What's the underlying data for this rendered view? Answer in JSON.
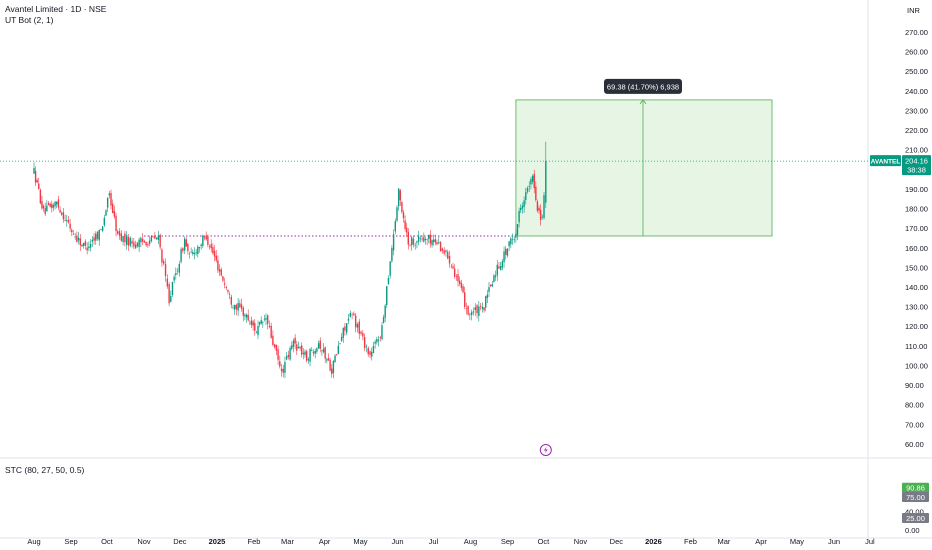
{
  "header": {
    "title": "Avantel Limited · 1D · NSE",
    "indicator": "UT Bot (2, 1)",
    "currency": "INR"
  },
  "price_badge": {
    "symbol": "AVANTEL",
    "price": "204.16",
    "countdown": "38:38"
  },
  "measure_label": "69.38 (41.70%) 6,938",
  "oscillator": {
    "name": "STC (80, 27, 50, 0.5)",
    "value_label": "90.86",
    "upper_level_label": "75.00",
    "lower_level_label": "25.00"
  },
  "colors": {
    "up": "#089981",
    "down": "#f23645",
    "range_fill": "#e6f5e4",
    "range_line": "#4caf50",
    "level_line": "#9c27b0",
    "badge_dark": "#2a2e39"
  },
  "chart_data": {
    "type": "candlestick",
    "title": "Avantel Limited · 1D · NSE",
    "price_axis_ticks": [
      "270.00",
      "260.00",
      "250.00",
      "240.00",
      "230.00",
      "220.00",
      "210.00",
      "200.00",
      "190.00",
      "180.00",
      "170.00",
      "160.00",
      "150.00",
      "140.00",
      "130.00",
      "120.00",
      "110.00",
      "100.00",
      "90.00",
      "80.00",
      "70.00",
      "60.00"
    ],
    "osc_axis_ticks": [
      "40.00",
      "0.00"
    ],
    "time_axis_ticks": [
      "Aug",
      "Sep",
      "Oct",
      "Nov",
      "Dec",
      "2025",
      "Feb",
      "Mar",
      "Apr",
      "May",
      "Jun",
      "Jul",
      "Aug",
      "Sep",
      "Oct",
      "Nov",
      "Dec",
      "2026",
      "Feb",
      "Mar",
      "Apr",
      "May",
      "Jun",
      "Jul"
    ],
    "price_range": [
      50,
      275
    ],
    "last_price": 204.16,
    "support_level": 166,
    "projection": {
      "from": 166.0,
      "to": 235.38,
      "change": 69.38,
      "percent": 41.7,
      "ticks": 6938
    },
    "price_path": [
      [
        "2024-08-01",
        199
      ],
      [
        "2024-08-09",
        178
      ],
      [
        "2024-08-20",
        183
      ],
      [
        "2024-09-03",
        167
      ],
      [
        "2024-09-13",
        160
      ],
      [
        "2024-09-26",
        169
      ],
      [
        "2024-10-03",
        187
      ],
      [
        "2024-10-10",
        166
      ],
      [
        "2024-10-25",
        162
      ],
      [
        "2024-11-13",
        165
      ],
      [
        "2024-11-22",
        134
      ],
      [
        "2024-11-29",
        150
      ],
      [
        "2024-12-05",
        164
      ],
      [
        "2024-12-09",
        155
      ],
      [
        "2024-12-23",
        166
      ],
      [
        "2025-01-13",
        133
      ],
      [
        "2025-01-23",
        127
      ],
      [
        "2025-02-03",
        118
      ],
      [
        "2025-02-11",
        124
      ],
      [
        "2025-02-24",
        96
      ],
      [
        "2025-03-06",
        112
      ],
      [
        "2025-03-17",
        104
      ],
      [
        "2025-03-27",
        112
      ],
      [
        "2025-04-07",
        98
      ],
      [
        "2025-04-18",
        120
      ],
      [
        "2025-04-24",
        126
      ],
      [
        "2025-05-09",
        105
      ],
      [
        "2025-05-19",
        118
      ],
      [
        "2025-05-23",
        140
      ],
      [
        "2025-06-02",
        188
      ],
      [
        "2025-06-10",
        163
      ],
      [
        "2025-06-23",
        165
      ],
      [
        "2025-07-04",
        163
      ],
      [
        "2025-07-16",
        153
      ],
      [
        "2025-07-30",
        127
      ],
      [
        "2025-08-11",
        128
      ],
      [
        "2025-08-22",
        148
      ],
      [
        "2025-09-08",
        168
      ],
      [
        "2025-09-12",
        182
      ],
      [
        "2025-09-22",
        195
      ],
      [
        "2025-09-26",
        181
      ],
      [
        "2025-09-30",
        174
      ],
      [
        "2025-10-03",
        204.16
      ]
    ],
    "stc_levels": [
      75,
      25
    ],
    "stc_last": 90.86
  }
}
